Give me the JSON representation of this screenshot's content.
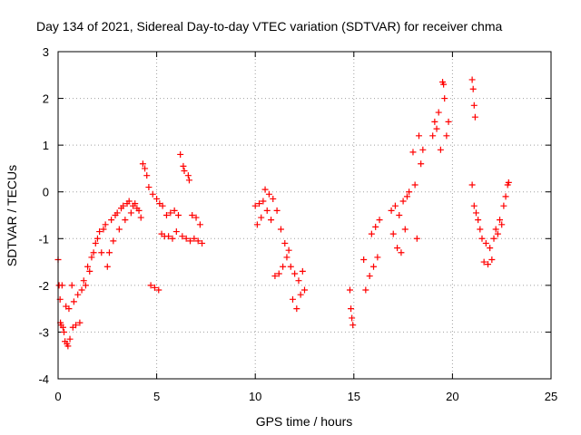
{
  "chart_data": {
    "type": "scatter",
    "title": "Day 134 of 2021, Sidereal Day-to-day VTEC variation (SDTVAR) for receiver chma",
    "xlabel": "GPS time / hours",
    "ylabel": "SDTVAR / TECUs",
    "xlim": [
      0,
      25
    ],
    "ylim": [
      -4,
      3
    ],
    "x_ticks": [
      "0",
      "5",
      "10",
      "15",
      "20",
      "25"
    ],
    "y_ticks": [
      "-4",
      "-3",
      "-2",
      "-1",
      "0",
      "1",
      "2",
      "3"
    ],
    "grid": true,
    "marker": "plus",
    "series": [
      {
        "name": "SDTVAR",
        "color": "#ff0000",
        "points": [
          [
            0.0,
            -1.45
          ],
          [
            0.05,
            -2.0
          ],
          [
            0.1,
            -2.3
          ],
          [
            0.12,
            -2.8
          ],
          [
            0.15,
            -2.85
          ],
          [
            0.2,
            -2.0
          ],
          [
            0.25,
            -2.9
          ],
          [
            0.3,
            -3.0
          ],
          [
            0.35,
            -3.2
          ],
          [
            0.4,
            -2.45
          ],
          [
            0.45,
            -3.25
          ],
          [
            0.5,
            -3.3
          ],
          [
            0.55,
            -2.5
          ],
          [
            0.6,
            -3.15
          ],
          [
            0.7,
            -2.0
          ],
          [
            0.75,
            -2.9
          ],
          [
            0.8,
            -2.35
          ],
          [
            0.9,
            -2.85
          ],
          [
            1.0,
            -2.2
          ],
          [
            1.1,
            -2.8
          ],
          [
            1.2,
            -2.1
          ],
          [
            1.3,
            -1.9
          ],
          [
            1.4,
            -2.0
          ],
          [
            1.5,
            -1.6
          ],
          [
            1.6,
            -1.7
          ],
          [
            1.7,
            -1.4
          ],
          [
            1.8,
            -1.3
          ],
          [
            1.9,
            -1.1
          ],
          [
            2.0,
            -1.0
          ],
          [
            2.1,
            -0.85
          ],
          [
            2.2,
            -1.3
          ],
          [
            2.3,
            -0.8
          ],
          [
            2.4,
            -0.7
          ],
          [
            2.5,
            -1.6
          ],
          [
            2.6,
            -1.3
          ],
          [
            2.7,
            -0.6
          ],
          [
            2.8,
            -1.05
          ],
          [
            2.9,
            -0.5
          ],
          [
            3.0,
            -0.45
          ],
          [
            3.1,
            -0.8
          ],
          [
            3.2,
            -0.35
          ],
          [
            3.3,
            -0.3
          ],
          [
            3.4,
            -0.6
          ],
          [
            3.5,
            -0.25
          ],
          [
            3.6,
            -0.2
          ],
          [
            3.7,
            -0.45
          ],
          [
            3.8,
            -0.3
          ],
          [
            3.9,
            -0.25
          ],
          [
            4.0,
            -0.35
          ],
          [
            4.1,
            -0.4
          ],
          [
            4.2,
            -0.55
          ],
          [
            4.3,
            0.6
          ],
          [
            4.4,
            0.5
          ],
          [
            4.5,
            0.35
          ],
          [
            4.6,
            0.1
          ],
          [
            4.7,
            -2.0
          ],
          [
            4.8,
            -0.05
          ],
          [
            4.9,
            -2.05
          ],
          [
            5.0,
            -0.15
          ],
          [
            5.1,
            -2.1
          ],
          [
            5.15,
            -0.25
          ],
          [
            5.25,
            -0.9
          ],
          [
            5.3,
            -0.3
          ],
          [
            5.4,
            -0.95
          ],
          [
            5.5,
            -0.5
          ],
          [
            5.6,
            -0.95
          ],
          [
            5.7,
            -0.45
          ],
          [
            5.8,
            -1.0
          ],
          [
            5.9,
            -0.4
          ],
          [
            6.0,
            -0.85
          ],
          [
            6.1,
            -0.5
          ],
          [
            6.2,
            0.8
          ],
          [
            6.3,
            -0.95
          ],
          [
            6.35,
            0.55
          ],
          [
            6.4,
            0.45
          ],
          [
            6.5,
            -1.0
          ],
          [
            6.6,
            0.35
          ],
          [
            6.65,
            0.25
          ],
          [
            6.7,
            -1.05
          ],
          [
            6.8,
            -0.5
          ],
          [
            6.9,
            -1.0
          ],
          [
            7.0,
            -0.55
          ],
          [
            7.1,
            -1.05
          ],
          [
            7.2,
            -0.7
          ],
          [
            7.3,
            -1.1
          ],
          [
            10.0,
            -0.3
          ],
          [
            10.1,
            -0.7
          ],
          [
            10.2,
            -0.25
          ],
          [
            10.3,
            -0.55
          ],
          [
            10.4,
            -0.2
          ],
          [
            10.5,
            0.05
          ],
          [
            10.6,
            -0.4
          ],
          [
            10.7,
            -0.05
          ],
          [
            10.8,
            -0.6
          ],
          [
            10.9,
            -0.15
          ],
          [
            11.0,
            -1.8
          ],
          [
            11.1,
            -0.4
          ],
          [
            11.2,
            -1.75
          ],
          [
            11.3,
            -0.8
          ],
          [
            11.4,
            -1.6
          ],
          [
            11.5,
            -1.1
          ],
          [
            11.6,
            -1.4
          ],
          [
            11.7,
            -1.25
          ],
          [
            11.8,
            -1.6
          ],
          [
            11.9,
            -2.3
          ],
          [
            12.0,
            -1.75
          ],
          [
            12.1,
            -2.5
          ],
          [
            12.2,
            -1.9
          ],
          [
            12.3,
            -2.2
          ],
          [
            12.4,
            -1.7
          ],
          [
            12.5,
            -2.1
          ],
          [
            14.8,
            -2.1
          ],
          [
            14.85,
            -2.5
          ],
          [
            14.9,
            -2.7
          ],
          [
            14.95,
            -2.85
          ],
          [
            15.5,
            -1.45
          ],
          [
            15.6,
            -2.1
          ],
          [
            15.8,
            -1.8
          ],
          [
            15.9,
            -0.9
          ],
          [
            16.0,
            -1.6
          ],
          [
            16.1,
            -0.75
          ],
          [
            16.2,
            -1.4
          ],
          [
            16.3,
            -0.6
          ],
          [
            16.9,
            -0.4
          ],
          [
            17.0,
            -0.9
          ],
          [
            17.1,
            -0.3
          ],
          [
            17.2,
            -1.2
          ],
          [
            17.3,
            -0.5
          ],
          [
            17.4,
            -1.3
          ],
          [
            17.5,
            -0.2
          ],
          [
            17.6,
            -0.8
          ],
          [
            17.7,
            -0.1
          ],
          [
            17.8,
            0.0
          ],
          [
            18.0,
            0.85
          ],
          [
            18.1,
            0.15
          ],
          [
            18.2,
            -1.0
          ],
          [
            18.3,
            1.2
          ],
          [
            18.4,
            0.6
          ],
          [
            18.5,
            0.9
          ],
          [
            19.0,
            1.2
          ],
          [
            19.1,
            1.5
          ],
          [
            19.2,
            1.35
          ],
          [
            19.3,
            1.7
          ],
          [
            19.4,
            0.9
          ],
          [
            19.5,
            2.35
          ],
          [
            19.55,
            2.3
          ],
          [
            19.6,
            2.0
          ],
          [
            19.7,
            1.2
          ],
          [
            19.8,
            1.5
          ],
          [
            21.0,
            2.4
          ],
          [
            21.05,
            2.2
          ],
          [
            21.1,
            1.85
          ],
          [
            21.15,
            1.6
          ],
          [
            21.0,
            0.15
          ],
          [
            21.1,
            -0.3
          ],
          [
            21.2,
            -0.45
          ],
          [
            21.3,
            -0.6
          ],
          [
            21.4,
            -0.8
          ],
          [
            21.5,
            -1.0
          ],
          [
            21.6,
            -1.5
          ],
          [
            21.7,
            -1.1
          ],
          [
            21.8,
            -1.55
          ],
          [
            21.9,
            -1.2
          ],
          [
            22.0,
            -1.45
          ],
          [
            22.1,
            -1.0
          ],
          [
            22.2,
            -0.8
          ],
          [
            22.3,
            -0.9
          ],
          [
            22.4,
            -0.6
          ],
          [
            22.5,
            -0.7
          ],
          [
            22.6,
            -0.3
          ],
          [
            22.7,
            -0.1
          ],
          [
            22.8,
            0.15
          ],
          [
            22.85,
            0.2
          ]
        ]
      }
    ]
  }
}
